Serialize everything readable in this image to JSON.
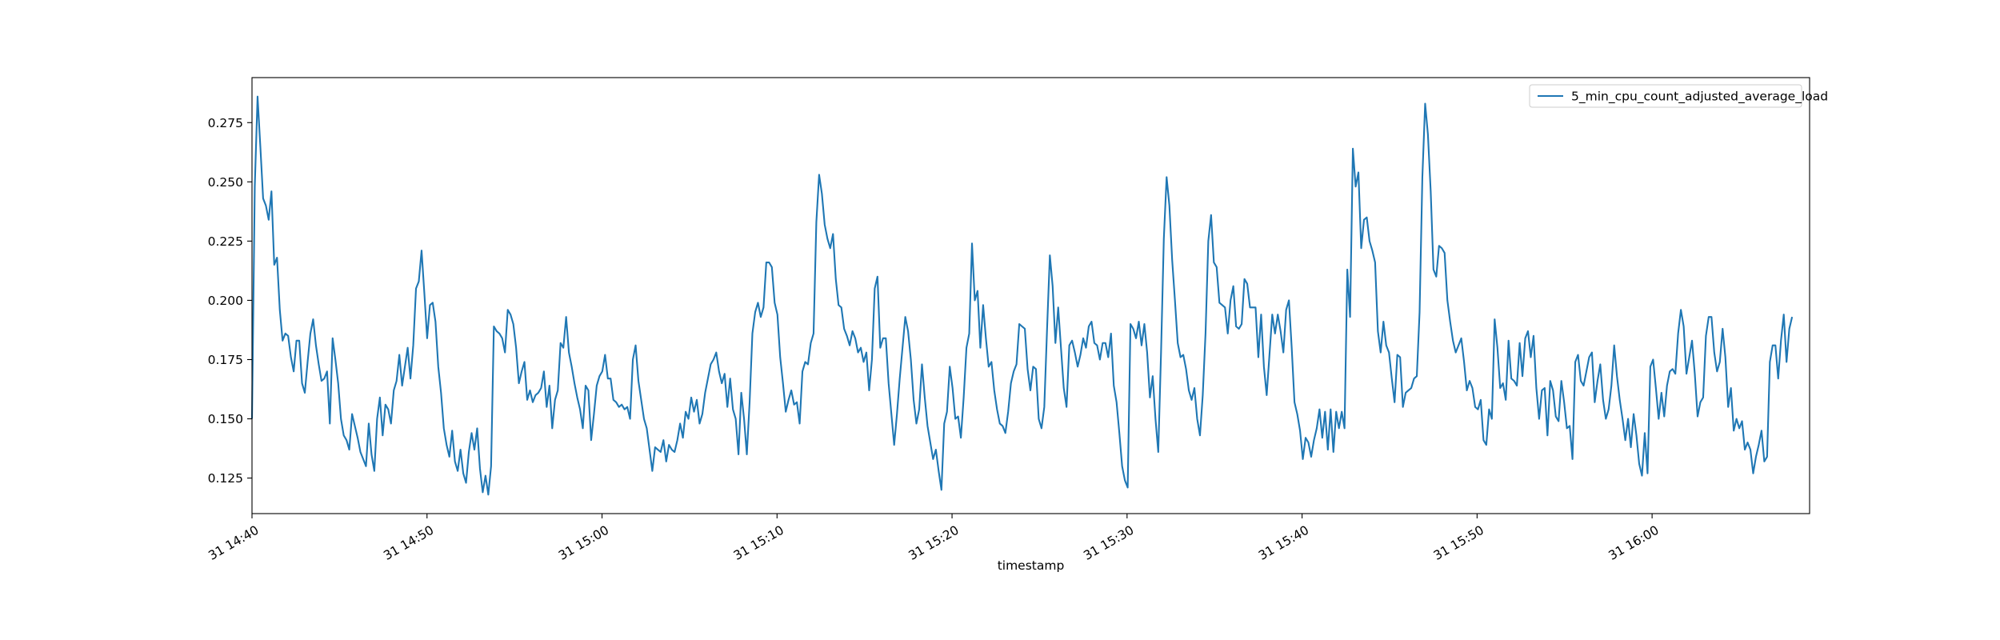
{
  "chart_data": {
    "type": "line",
    "title": "",
    "xlabel": "timestamp",
    "ylabel": "",
    "x_start": "31 14:40",
    "x_end": "31 16:08",
    "xlim": [
      "31 14:40",
      "31 16:09"
    ],
    "x_ticks": [
      "31 14:40",
      "31 14:50",
      "31 15:00",
      "31 15:10",
      "31 15:20",
      "31 15:30",
      "31 15:40",
      "31 15:50",
      "31 16:00"
    ],
    "ylim": [
      0.11,
      0.294
    ],
    "y_ticks": [
      0.125,
      0.15,
      0.175,
      0.2,
      0.225,
      0.25,
      0.275
    ],
    "y_tick_labels": [
      "0.125",
      "0.150",
      "0.175",
      "0.200",
      "0.225",
      "0.250",
      "0.275"
    ],
    "grid": false,
    "legend_position": "top-right",
    "series": [
      {
        "name": "5_min_cpu_count_adjusted_average_load",
        "color": "#1f77b4",
        "values": [
          0.15,
          0.248,
          0.286,
          0.265,
          0.243,
          0.24,
          0.234,
          0.246,
          0.215,
          0.218,
          0.196,
          0.183,
          0.186,
          0.185,
          0.176,
          0.17,
          0.183,
          0.183,
          0.165,
          0.161,
          0.174,
          0.186,
          0.192,
          0.181,
          0.173,
          0.166,
          0.167,
          0.17,
          0.148,
          0.184,
          0.175,
          0.165,
          0.15,
          0.143,
          0.141,
          0.137,
          0.152,
          0.147,
          0.142,
          0.136,
          0.133,
          0.13,
          0.148,
          0.135,
          0.128,
          0.15,
          0.159,
          0.143,
          0.156,
          0.154,
          0.148,
          0.162,
          0.166,
          0.177,
          0.164,
          0.172,
          0.18,
          0.167,
          0.181,
          0.205,
          0.208,
          0.221,
          0.203,
          0.184,
          0.198,
          0.199,
          0.191,
          0.172,
          0.161,
          0.146,
          0.139,
          0.134,
          0.145,
          0.132,
          0.128,
          0.137,
          0.127,
          0.123,
          0.136,
          0.144,
          0.137,
          0.146,
          0.129,
          0.119,
          0.126,
          0.118,
          0.13,
          0.189,
          0.187,
          0.186,
          0.184,
          0.178,
          0.196,
          0.194,
          0.19,
          0.18,
          0.165,
          0.17,
          0.174,
          0.158,
          0.162,
          0.157,
          0.16,
          0.161,
          0.163,
          0.17,
          0.155,
          0.164,
          0.146,
          0.158,
          0.162,
          0.182,
          0.18,
          0.193,
          0.178,
          0.172,
          0.165,
          0.159,
          0.154,
          0.146,
          0.164,
          0.162,
          0.141,
          0.152,
          0.164,
          0.168,
          0.17,
          0.177,
          0.167,
          0.167,
          0.158,
          0.157,
          0.155,
          0.156,
          0.154,
          0.155,
          0.15,
          0.175,
          0.181,
          0.166,
          0.158,
          0.15,
          0.146,
          0.137,
          0.128,
          0.138,
          0.137,
          0.136,
          0.141,
          0.132,
          0.139,
          0.137,
          0.136,
          0.141,
          0.148,
          0.142,
          0.153,
          0.15,
          0.159,
          0.153,
          0.158,
          0.148,
          0.152,
          0.161,
          0.167,
          0.173,
          0.175,
          0.178,
          0.17,
          0.165,
          0.169,
          0.155,
          0.167,
          0.154,
          0.15,
          0.135,
          0.161,
          0.15,
          0.135,
          0.157,
          0.186,
          0.195,
          0.199,
          0.193,
          0.197,
          0.216,
          0.216,
          0.214,
          0.199,
          0.194,
          0.176,
          0.165,
          0.153,
          0.158,
          0.162,
          0.156,
          0.157,
          0.148,
          0.17,
          0.174,
          0.173,
          0.182,
          0.186,
          0.233,
          0.253,
          0.245,
          0.232,
          0.226,
          0.222,
          0.228,
          0.209,
          0.198,
          0.197,
          0.188,
          0.185,
          0.181,
          0.187,
          0.184,
          0.178,
          0.18,
          0.174,
          0.178,
          0.162,
          0.175,
          0.205,
          0.21,
          0.18,
          0.184,
          0.184,
          0.165,
          0.152,
          0.139,
          0.152,
          0.167,
          0.18,
          0.193,
          0.187,
          0.175,
          0.158,
          0.148,
          0.154,
          0.173,
          0.159,
          0.147,
          0.14,
          0.133,
          0.137,
          0.128,
          0.12,
          0.148,
          0.153,
          0.172,
          0.163,
          0.15,
          0.151,
          0.142,
          0.159,
          0.18,
          0.186,
          0.224,
          0.2,
          0.204,
          0.18,
          0.198,
          0.184,
          0.172,
          0.174,
          0.162,
          0.154,
          0.148,
          0.147,
          0.144,
          0.153,
          0.165,
          0.17,
          0.173,
          0.19,
          0.189,
          0.188,
          0.171,
          0.162,
          0.172,
          0.171,
          0.15,
          0.146,
          0.155,
          0.188,
          0.219,
          0.206,
          0.182,
          0.197,
          0.18,
          0.163,
          0.155,
          0.181,
          0.183,
          0.178,
          0.172,
          0.177,
          0.184,
          0.18,
          0.189,
          0.191,
          0.182,
          0.181,
          0.175,
          0.182,
          0.182,
          0.176,
          0.186,
          0.164,
          0.157,
          0.144,
          0.13,
          0.124,
          0.121,
          0.19,
          0.188,
          0.184,
          0.191,
          0.181,
          0.19,
          0.178,
          0.159,
          0.168,
          0.15,
          0.136,
          0.178,
          0.226,
          0.252,
          0.24,
          0.217,
          0.2,
          0.182,
          0.176,
          0.177,
          0.171,
          0.162,
          0.158,
          0.163,
          0.15,
          0.143,
          0.16,
          0.186,
          0.225,
          0.236,
          0.216,
          0.214,
          0.199,
          0.198,
          0.197,
          0.186,
          0.2,
          0.206,
          0.189,
          0.188,
          0.19,
          0.209,
          0.207,
          0.197,
          0.197,
          0.197,
          0.176,
          0.194,
          0.172,
          0.16,
          0.177,
          0.194,
          0.186,
          0.194,
          0.187,
          0.178,
          0.196,
          0.2,
          0.18,
          0.157,
          0.152,
          0.145,
          0.133,
          0.142,
          0.14,
          0.134,
          0.141,
          0.146,
          0.154,
          0.142,
          0.153,
          0.137,
          0.154,
          0.136,
          0.153,
          0.146,
          0.153,
          0.146,
          0.213,
          0.193,
          0.264,
          0.248,
          0.254,
          0.222,
          0.234,
          0.235,
          0.225,
          0.221,
          0.216,
          0.187,
          0.178,
          0.191,
          0.181,
          0.178,
          0.167,
          0.157,
          0.177,
          0.176,
          0.155,
          0.161,
          0.162,
          0.163,
          0.167,
          0.168,
          0.195,
          0.252,
          0.283,
          0.27,
          0.246,
          0.213,
          0.21,
          0.223,
          0.222,
          0.22,
          0.2,
          0.191,
          0.183,
          0.178,
          0.181,
          0.184,
          0.174,
          0.162,
          0.166,
          0.163,
          0.155,
          0.154,
          0.158,
          0.141,
          0.139,
          0.154,
          0.15,
          0.192,
          0.18,
          0.163,
          0.165,
          0.158,
          0.183,
          0.167,
          0.166,
          0.164,
          0.182,
          0.168,
          0.184,
          0.187,
          0.176,
          0.185,
          0.163,
          0.15,
          0.162,
          0.163,
          0.143,
          0.166,
          0.162,
          0.151,
          0.149,
          0.166,
          0.157,
          0.146,
          0.147,
          0.133,
          0.174,
          0.177,
          0.166,
          0.164,
          0.17,
          0.176,
          0.178,
          0.157,
          0.166,
          0.173,
          0.158,
          0.15,
          0.154,
          0.164,
          0.181,
          0.168,
          0.158,
          0.15,
          0.141,
          0.15,
          0.138,
          0.152,
          0.143,
          0.131,
          0.126,
          0.144,
          0.127,
          0.172,
          0.175,
          0.163,
          0.15,
          0.161,
          0.151,
          0.164,
          0.17,
          0.171,
          0.169,
          0.186,
          0.196,
          0.189,
          0.169,
          0.176,
          0.183,
          0.169,
          0.151,
          0.157,
          0.159,
          0.185,
          0.193,
          0.193,
          0.178,
          0.17,
          0.174,
          0.188,
          0.176,
          0.155,
          0.163,
          0.145,
          0.15,
          0.146,
          0.149,
          0.137,
          0.14,
          0.137,
          0.127,
          0.134,
          0.139,
          0.145,
          0.132,
          0.134,
          0.174,
          0.181,
          0.181,
          0.167,
          0.183,
          0.194,
          0.174,
          0.188,
          0.193
        ]
      }
    ]
  }
}
